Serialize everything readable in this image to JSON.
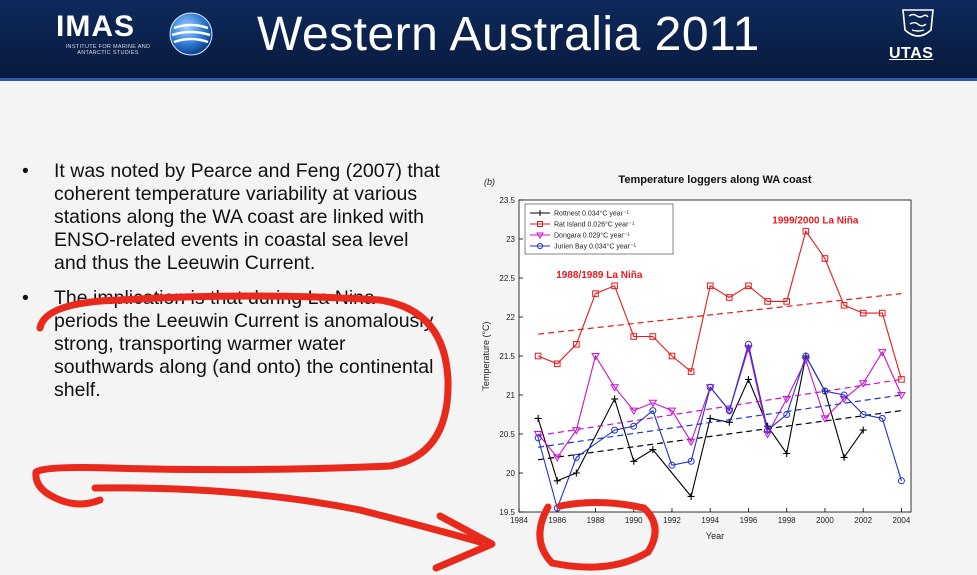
{
  "header": {
    "logo_word": "IMAS",
    "logo_sub_line1": "INSTITUTE FOR MARINE AND",
    "logo_sub_line2": "ANTARCTIC STUDIES",
    "title": "Western Australia 2011",
    "right_logo_text": "UTAS",
    "colors": {
      "background": "#0a2049",
      "text": "#ffffff"
    }
  },
  "bullets": [
    {
      "marker": "•",
      "text": "It was noted by Pearce and Feng (2007) that coherent temperature variability at various stations along the WA coast are linked with ENSO-related events in coastal sea level and thus the Leeuwin Current."
    },
    {
      "marker": "•",
      "text": "The implication is that during La Nina periods the Leeuwin Current is anomalously strong, transporting warmer water southwards along (and onto) the continental shelf."
    }
  ],
  "chart_panel_label": "(b)",
  "chart_data": {
    "type": "line",
    "title": "Temperature loggers along WA coast",
    "xlabel": "Year",
    "ylabel": "Temperature (°C)",
    "xlim": [
      1984,
      2004.5
    ],
    "ylim": [
      19.5,
      23.5
    ],
    "xticks": [
      "1984",
      "1986",
      "1988",
      "1990",
      "1992",
      "1994",
      "1996",
      "1998",
      "2000",
      "2002",
      "2004"
    ],
    "yticks": [
      "19.5",
      "20",
      "20.5",
      "21",
      "21.5",
      "22",
      "22.5",
      "23",
      "23.5"
    ],
    "legend_position": "top-left",
    "grid": false,
    "annotations": [
      {
        "text": "1988/1989 La Niña",
        "x": 1988.2,
        "y": 22.5
      },
      {
        "text": "1999/2000 La Niña",
        "x": 1999.5,
        "y": 23.2
      }
    ],
    "series": [
      {
        "name": "Rottnest 0.034°C year⁻¹",
        "color": "#000000",
        "marker": "plus",
        "x": [
          1985,
          1986,
          1987,
          1989,
          1990,
          1991,
          1993,
          1994,
          1995,
          1996,
          1997,
          1998,
          1999,
          2000,
          2001,
          2002
        ],
        "y": [
          20.7,
          19.9,
          20.0,
          20.95,
          20.15,
          20.3,
          19.7,
          20.7,
          20.65,
          21.2,
          20.6,
          20.25,
          21.5,
          21.05,
          20.2,
          20.55
        ],
        "trend": [
          20.17,
          20.8
        ]
      },
      {
        "name": "Rat Island 0.026°C year⁻¹",
        "color": "#e8191c",
        "marker": "square",
        "x": [
          1985,
          1986,
          1987,
          1988,
          1989,
          1990,
          1991,
          1992,
          1993,
          1994,
          1995,
          1996,
          1997,
          1998,
          1999,
          2000,
          2001,
          2002,
          2003,
          2004
        ],
        "y": [
          21.5,
          21.4,
          21.65,
          22.3,
          22.4,
          21.75,
          21.75,
          21.5,
          21.3,
          22.4,
          22.25,
          22.4,
          22.2,
          22.2,
          23.1,
          22.75,
          22.15,
          22.05,
          22.05,
          21.2
        ],
        "trend": [
          21.78,
          22.3
        ]
      },
      {
        "name": "Dongara 0.029°C year⁻¹",
        "color": "#cc11cc",
        "marker": "triangle",
        "x": [
          1985,
          1986,
          1987,
          1988,
          1989,
          1990,
          1991,
          1992,
          1993,
          1994,
          1995,
          1996,
          1997,
          1998,
          1999,
          2000,
          2001,
          2002,
          2003,
          2004
        ],
        "y": [
          20.5,
          20.2,
          20.55,
          21.5,
          21.1,
          20.8,
          20.9,
          20.8,
          20.4,
          21.1,
          20.8,
          21.6,
          20.5,
          20.95,
          21.45,
          20.7,
          20.95,
          21.15,
          21.55,
          21.0
        ],
        "trend": [
          20.48,
          21.2
        ]
      },
      {
        "name": "Jurien Bay 0.034°C year⁻¹",
        "color": "#2233cc",
        "marker": "circle",
        "x": [
          1985,
          1986,
          1987,
          1989,
          1990,
          1991,
          1992,
          1993,
          1994,
          1995,
          1996,
          1997,
          1998,
          1999,
          2000,
          2001,
          2002,
          2003,
          2004
        ],
        "y": [
          20.45,
          19.55,
          20.2,
          20.55,
          20.6,
          20.8,
          20.1,
          20.15,
          21.1,
          20.8,
          21.65,
          20.55,
          20.75,
          21.5,
          21.05,
          21.0,
          20.75,
          20.7,
          19.9
        ],
        "trend": [
          20.33,
          21.0
        ]
      }
    ]
  },
  "annotation_colors": {
    "ink": "#e8291c"
  }
}
